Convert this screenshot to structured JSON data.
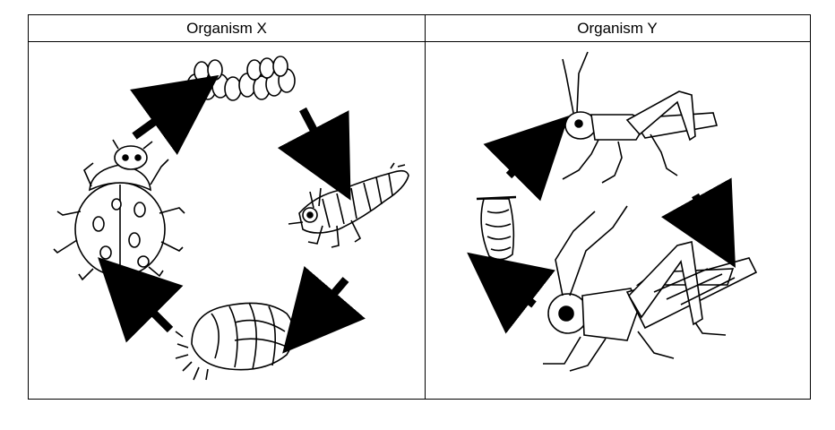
{
  "table": {
    "headers": {
      "organism_x": "Organism X",
      "organism_y": "Organism Y"
    }
  },
  "organism_x": {
    "stages": [
      "eggs",
      "larva",
      "pupa",
      "adult ladybird beetle"
    ],
    "cycle_type": "complete metamorphosis"
  },
  "organism_y": {
    "stages": [
      "eggs",
      "nymph",
      "adult grasshopper"
    ],
    "cycle_type": "incomplete metamorphosis"
  },
  "colors": {
    "ink": "#000000",
    "paper": "#ffffff"
  }
}
